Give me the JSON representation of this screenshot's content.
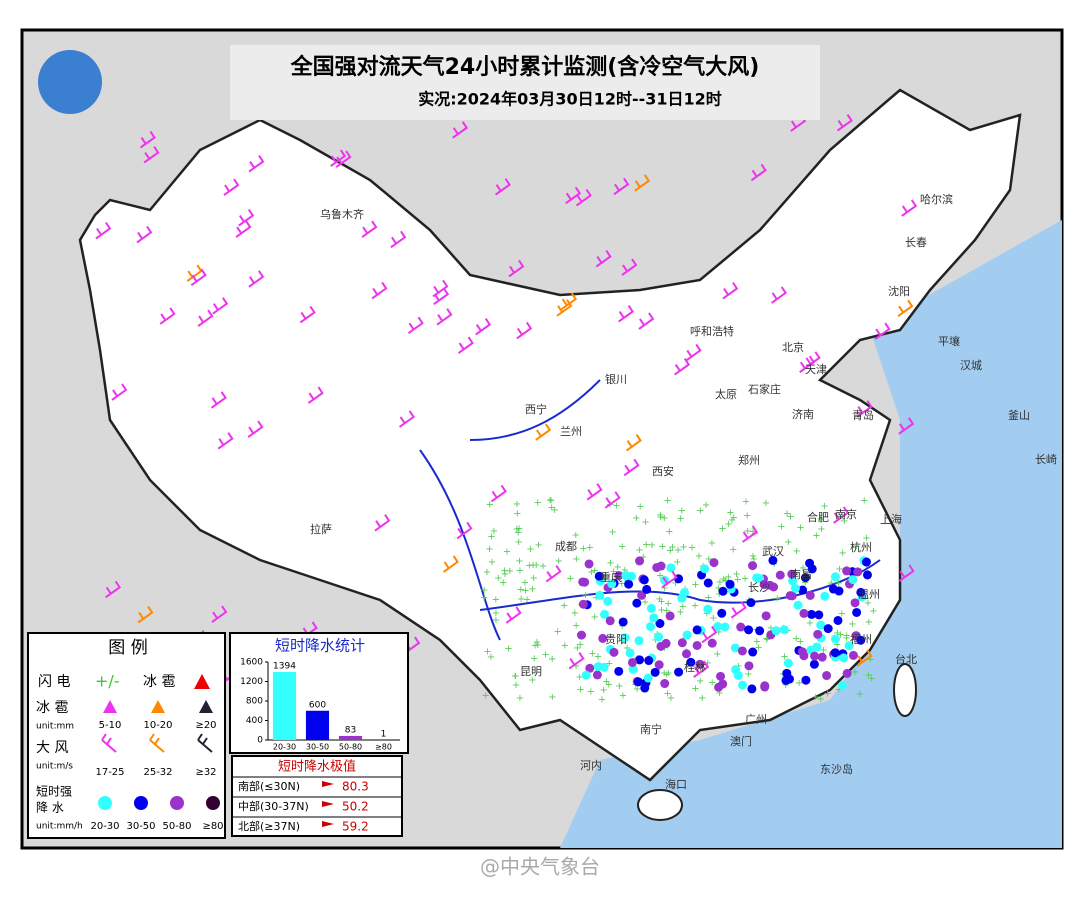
{
  "header": {
    "title": "全国强对流天气24小时累计监测(含冷空气大风)",
    "subtitle": "实况:2024年03月30日12时--31日12时"
  },
  "cities": [
    "乌鲁木齐",
    "哈尔滨",
    "长春",
    "沈阳",
    "呼和浩特",
    "北京",
    "太原",
    "石家庄",
    "济南",
    "青岛",
    "郑州",
    "西宁",
    "兰州",
    "银川",
    "西安",
    "合肥",
    "南京",
    "武汉",
    "成都",
    "重庆",
    "拉萨",
    "贵阳",
    "昆明",
    "南宁",
    "桂林",
    "广州",
    "台北",
    "平壤",
    "汉城",
    "釜山",
    "长崎",
    "河内",
    "东沙岛",
    "天津",
    "长沙",
    "南昌",
    "福州",
    "杭州",
    "上海",
    "海口",
    "澳门",
    "温州"
  ],
  "legend": {
    "title": "图 例",
    "lightning": "闪 电",
    "hail": "冰 雹",
    "hail_size": {
      "label": "冰 雹",
      "unit": "unit:mm",
      "classes": [
        "5-10",
        "10-20",
        "≥20"
      ]
    },
    "wind": {
      "label": "大 风",
      "unit": "unit:m/s",
      "classes": [
        "17-25",
        "25-32",
        "≥32"
      ]
    },
    "rain": {
      "label_top": "短时强",
      "label_bottom": "降 水",
      "unit": "unit:mm/h",
      "classes": [
        "20-30",
        "30-50",
        "50-80",
        "≥80"
      ]
    }
  },
  "chart_data": {
    "type": "bar",
    "title": "短时降水统计",
    "categories": [
      "20-30",
      "30-50",
      "50-80",
      "≥80"
    ],
    "values": [
      1394,
      600,
      83,
      1
    ],
    "colors": [
      "#33ffff",
      "#0000ee",
      "#9933cc",
      "#330033"
    ],
    "ylim": [
      0,
      1600
    ],
    "yticks": [
      0,
      400,
      800,
      1200,
      1600
    ]
  },
  "extremes": {
    "title": "短时降水极值",
    "rows": [
      {
        "region": "南部(≤30N)",
        "value": 80.3
      },
      {
        "region": "中部(30-37N)",
        "value": 50.2
      },
      {
        "region": "北部(≥37N)",
        "value": 59.2
      }
    ]
  },
  "watermark": "@中央气象台"
}
